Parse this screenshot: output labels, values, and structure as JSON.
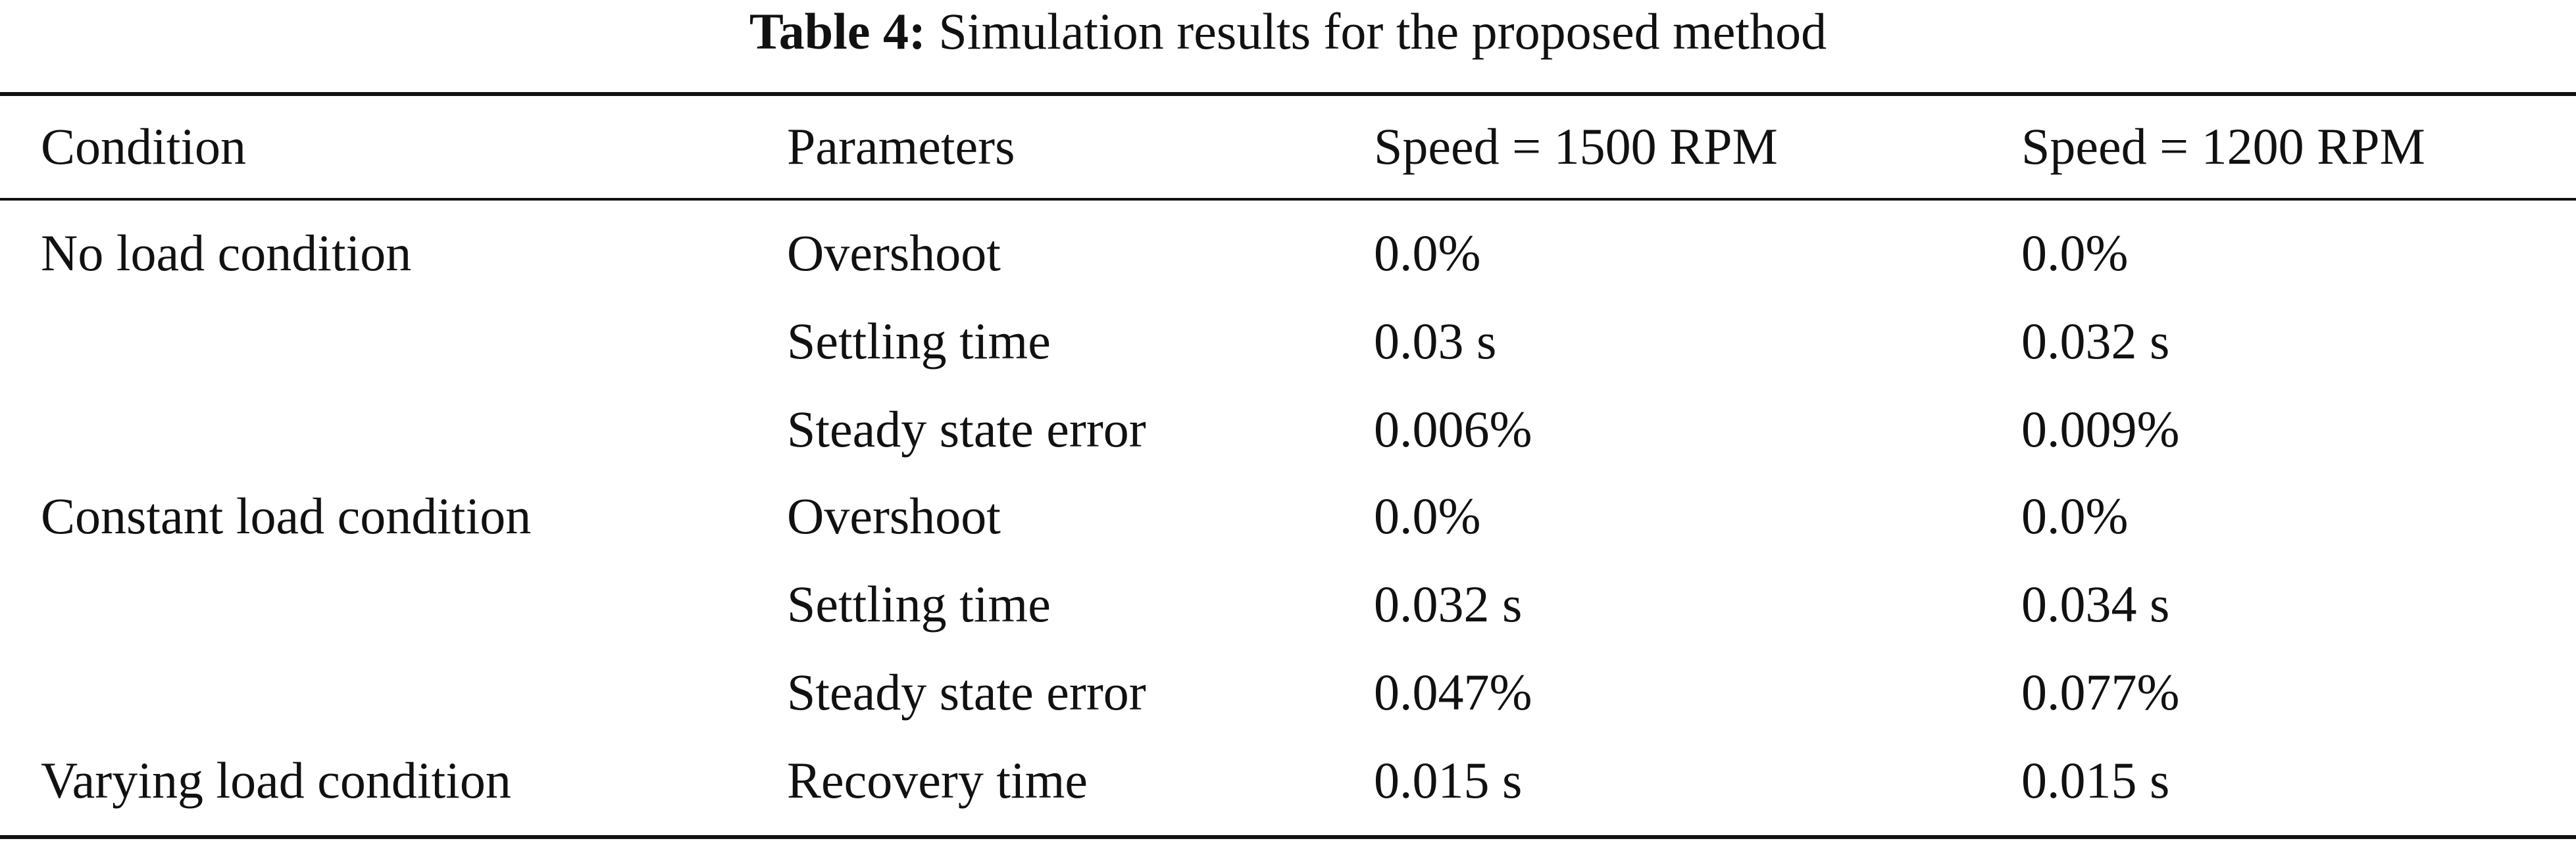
{
  "caption": {
    "label": "Table 4:",
    "text": "Simulation results for the proposed method"
  },
  "table": {
    "headers": [
      "Condition",
      "Parameters",
      "Speed = 1500 RPM",
      "Speed = 1200 RPM"
    ],
    "rows": [
      [
        "No load condition",
        "Overshoot",
        "0.0%",
        "0.0%"
      ],
      [
        "",
        "Settling time",
        "0.03 s",
        "0.032 s"
      ],
      [
        "",
        "Steady state error",
        "0.006%",
        "0.009%"
      ],
      [
        "Constant load condition",
        "Overshoot",
        "0.0%",
        "0.0%"
      ],
      [
        "",
        "Settling time",
        "0.032 s",
        "0.034 s"
      ],
      [
        "",
        "Steady state error",
        "0.047%",
        "0.077%"
      ],
      [
        "Varying load condition",
        "Recovery time",
        "0.015 s",
        "0.015 s"
      ]
    ]
  }
}
